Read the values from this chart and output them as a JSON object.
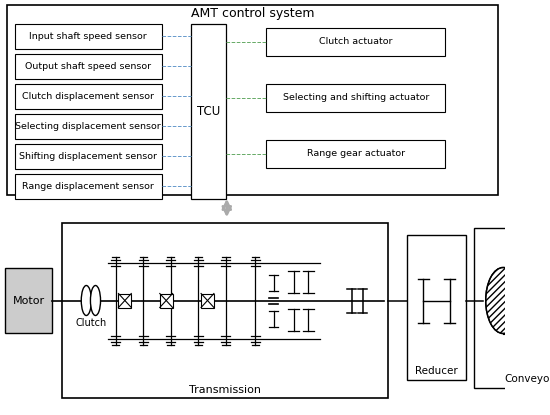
{
  "title": "AMT control system",
  "bg_color": "#ffffff",
  "sensor_labels": [
    "Input shaft speed sensor",
    "Output shaft speed sensor",
    "Clutch displacement sensor",
    "Selecting displacement sensor",
    "Shifting displacement sensor",
    "Range displacement sensor"
  ],
  "actuator_labels": [
    "Clutch actuator",
    "Selecting and shifting actuator",
    "Range gear actuator"
  ],
  "tcu_label": "TCU",
  "motor_label": "Motor",
  "clutch_label": "Clutch",
  "transmission_label": "Transmission",
  "reducer_label": "Reducer",
  "conveyor_label": "Conveyor",
  "dashed_blue": "#6699cc",
  "dashed_green": "#66aa66",
  "arrow_gray": "#aaaaaa"
}
